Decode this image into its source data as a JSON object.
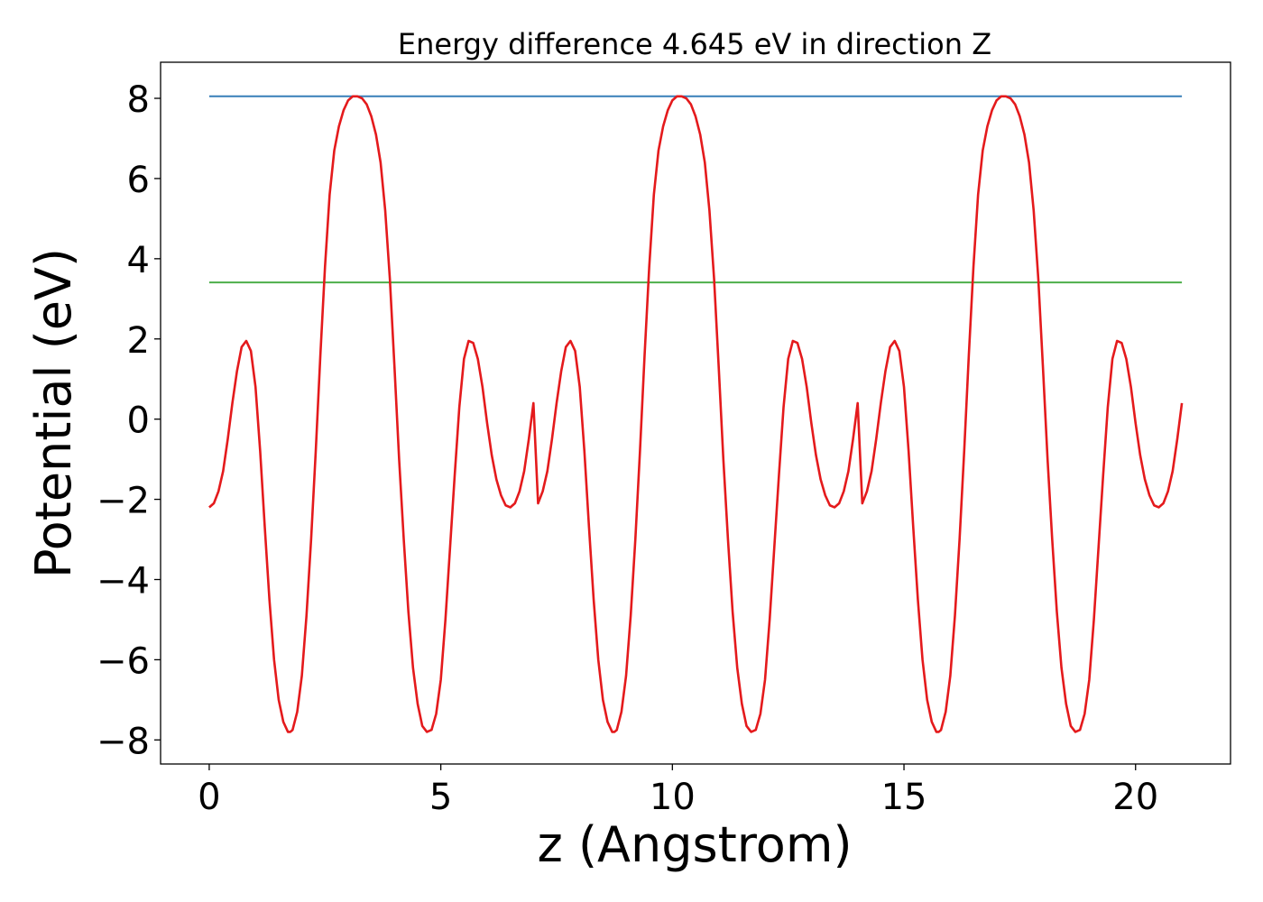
{
  "chart_data": {
    "type": "line",
    "title": "Energy difference 4.645 eV in direction Z",
    "xlabel": "z (Angstrom)",
    "ylabel": "Potential (eV)",
    "xlim": [
      -1.05,
      22.05
    ],
    "ylim": [
      -8.6,
      8.9
    ],
    "xticks": [
      0,
      5,
      10,
      15,
      20
    ],
    "yticks": [
      -8,
      -6,
      -4,
      -2,
      0,
      2,
      4,
      6,
      8
    ],
    "xtick_labels": [
      "0",
      "5",
      "10",
      "15",
      "20"
    ],
    "ytick_labels": [
      "−8",
      "−6",
      "−4",
      "−2",
      "0",
      "2",
      "4",
      "6",
      "8"
    ],
    "grid": false,
    "series": [
      {
        "color": "#e41a1c",
        "x": [
          0,
          0.1,
          0.2,
          0.3,
          0.4,
          0.5,
          0.6,
          0.7,
          0.8,
          0.9,
          1.0,
          1.1,
          1.2,
          1.3,
          1.4,
          1.5,
          1.6,
          1.7,
          1.75,
          1.8,
          1.9,
          2.0,
          2.1,
          2.2,
          2.3,
          2.4,
          2.5,
          2.6,
          2.7,
          2.8,
          2.9,
          3.0,
          3.1,
          3.2,
          3.3,
          3.4,
          3.5,
          3.6,
          3.7,
          3.8,
          3.9,
          4.0,
          4.1,
          4.2,
          4.3,
          4.4,
          4.5,
          4.6,
          4.7,
          4.8,
          4.9,
          5.0,
          5.1,
          5.2,
          5.25,
          5.3,
          5.4,
          5.5,
          5.6,
          5.7,
          5.8,
          5.9,
          6.0,
          6.1,
          6.2,
          6.3,
          6.4,
          6.5,
          6.6,
          6.7,
          6.8,
          6.9,
          7.0
        ],
        "y": [
          -2.2,
          -2.1,
          -1.8,
          -1.3,
          -0.5,
          0.4,
          1.2,
          1.8,
          1.95,
          1.7,
          0.8,
          -0.8,
          -2.7,
          -4.5,
          -6.0,
          -7.0,
          -7.55,
          -7.8,
          -7.8,
          -7.75,
          -7.3,
          -6.4,
          -4.9,
          -3.0,
          -0.8,
          1.6,
          3.8,
          5.6,
          6.7,
          7.3,
          7.7,
          7.95,
          8.05,
          8.05,
          8.0,
          7.85,
          7.55,
          7.1,
          6.4,
          5.2,
          3.5,
          1.3,
          -1.0,
          -3.0,
          -4.8,
          -6.2,
          -7.1,
          -7.65,
          -7.8,
          -7.75,
          -7.35,
          -6.5,
          -5.0,
          -3.2,
          -2.3,
          -1.4,
          0.3,
          1.5,
          1.95,
          1.9,
          1.5,
          0.8,
          -0.1,
          -0.9,
          -1.5,
          -1.9,
          -2.15,
          -2.2,
          -2.1,
          -1.8,
          -1.3,
          -0.5,
          0.4
        ],
        "period": 7.0,
        "x_max": 21.0
      },
      {
        "color": "#377eb8",
        "x": [
          0,
          21
        ],
        "y": [
          8.05,
          8.05
        ]
      },
      {
        "color": "#4daf4a",
        "x": [
          0,
          21
        ],
        "y": [
          3.41,
          3.41
        ]
      }
    ]
  }
}
